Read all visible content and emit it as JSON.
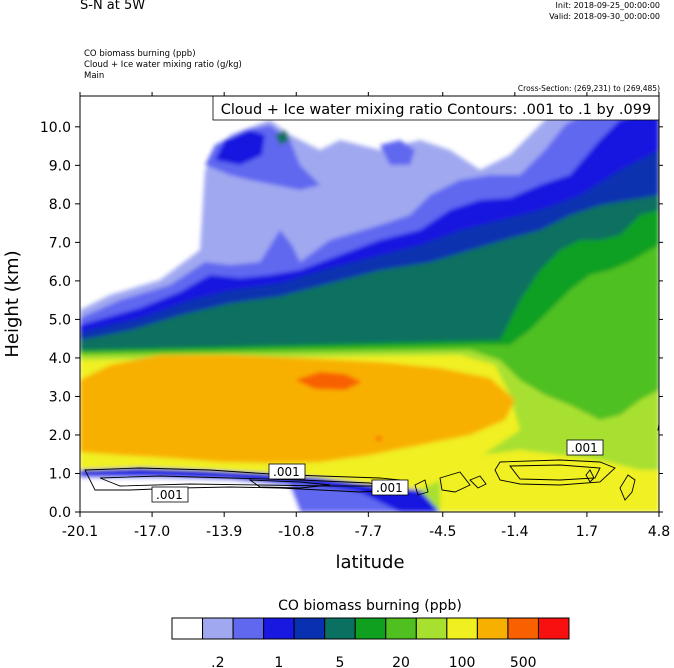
{
  "header": {
    "title": "S-N at 5W",
    "init": "Init: 2018-09-25_00:00:00",
    "valid": "Valid: 2018-09-30_00:00:00",
    "field1": "CO biomass burning   (ppb)",
    "field2": "Cloud + Ice water mixing ratio   (g/kg)",
    "field3": "Main",
    "cross_section": "Cross-Section: (269,231) to (269,485)"
  },
  "chart_data": {
    "type": "heatmap",
    "title": "",
    "xlabel": "latitude",
    "ylabel": "Height (km)",
    "xlim": [
      -20.1,
      4.8
    ],
    "ylim": [
      0.0,
      10.8
    ],
    "x_ticks": [
      "-20.1",
      "-17.0",
      "-13.9",
      "-10.8",
      "-7.7",
      "-4.5",
      "-1.4",
      "1.7",
      "4.8"
    ],
    "y_ticks": [
      "0.0",
      "1.0",
      "2.0",
      "3.0",
      "4.0",
      "5.0",
      "6.0",
      "7.0",
      "8.0",
      "9.0",
      "10.0"
    ],
    "contour_label": "Cloud + Ice water mixing ratio Contours: .001 to .1 by .099",
    "contour_value_labels": [
      ".001",
      ".001",
      ".001",
      ".001"
    ],
    "colorbar": {
      "title": "CO biomass burning  (ppb)",
      "colors": [
        "#ffffff",
        "#a0a8f0",
        "#6068f0",
        "#1818e0",
        "#0830b0",
        "#0a7060",
        "#10a020",
        "#50c020",
        "#a8e030",
        "#f0f020",
        "#f8b000",
        "#f86000",
        "#f81010"
      ],
      "tick_labels": [
        ".2",
        "1",
        "5",
        "20",
        "100",
        "500"
      ]
    }
  }
}
